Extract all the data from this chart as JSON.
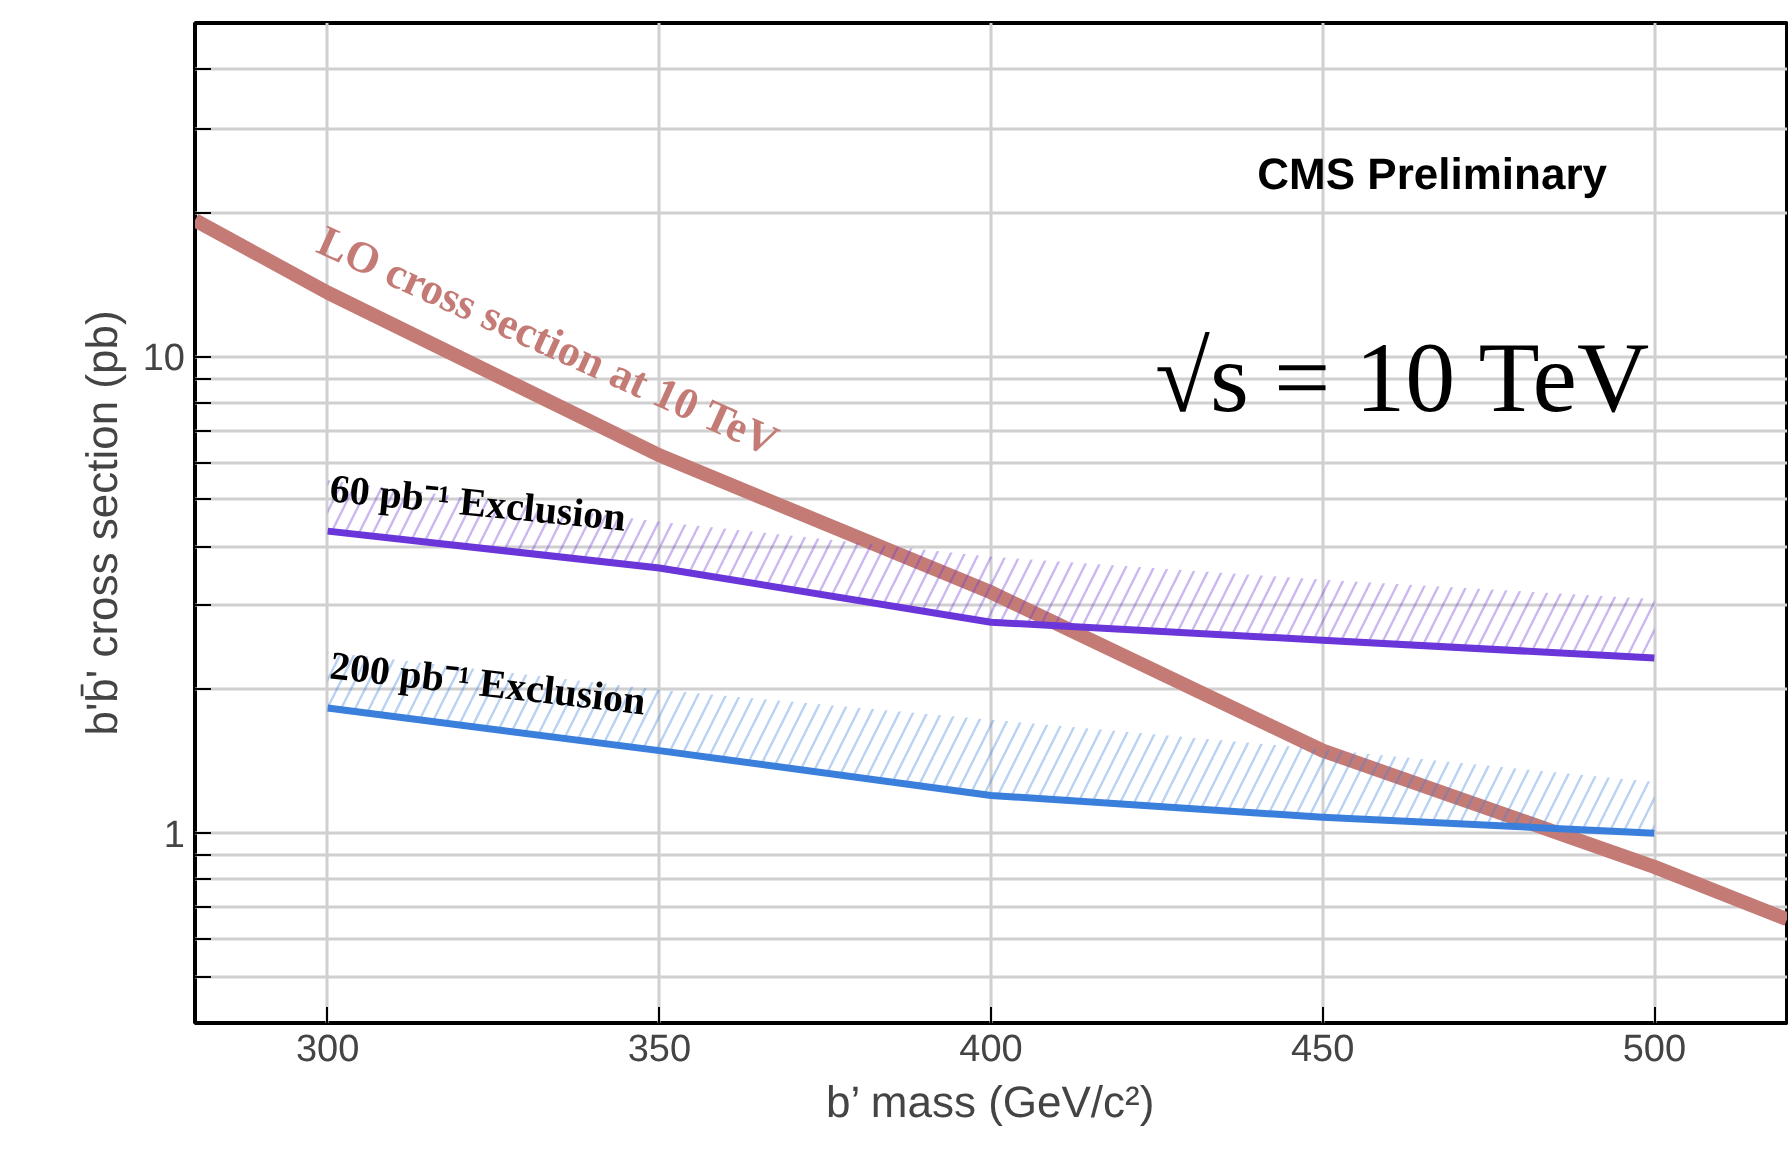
{
  "chart_data": {
    "type": "line",
    "xlabel": "b’ mass (GeV/c²)",
    "ylabel": "b'b̄' cross section (pb)",
    "xlim": [
      280,
      520
    ],
    "ylim": [
      0.4,
      50
    ],
    "log": "y",
    "grid": true,
    "line_style": "solid",
    "marker": "none",
    "xticks": [
      300,
      350,
      400,
      450,
      500
    ],
    "yticks": [
      {
        "value": 0.4,
        "label": null
      },
      {
        "value": 0.5,
        "label": null
      },
      {
        "value": 0.6,
        "label": null
      },
      {
        "value": 0.7,
        "label": null
      },
      {
        "value": 0.8,
        "label": null
      },
      {
        "value": 0.9,
        "label": null
      },
      1,
      {
        "value": 2,
        "label": null
      },
      {
        "value": 3,
        "label": null
      },
      {
        "value": 4,
        "label": null
      },
      {
        "value": 5,
        "label": null
      },
      {
        "value": 6,
        "label": null
      },
      {
        "value": 7,
        "label": null
      },
      {
        "value": 8,
        "label": null
      },
      {
        "value": 9,
        "label": null
      },
      10,
      {
        "value": 20,
        "label": null
      },
      {
        "value": 30,
        "label": null
      },
      {
        "value": 40,
        "label": null
      },
      {
        "value": 50,
        "label": null
      }
    ],
    "series": [
      {
        "name": "LO cross section at 10 TeV",
        "color": "#c47b76",
        "x": [
          280,
          300,
          350,
          400,
          450,
          500,
          520
        ],
        "values": [
          19.3,
          13.6,
          6.2,
          3.2,
          1.49,
          0.85,
          0.66
        ]
      },
      {
        "name": "60 pb⁻¹ Exclusion",
        "color": "#6a35d9",
        "x": [
          300,
          350,
          400,
          450,
          500
        ],
        "values": [
          4.3,
          3.6,
          2.77,
          2.54,
          2.33
        ],
        "lower": [
          4.3,
          3.6,
          2.77,
          2.54,
          2.33
        ],
        "upper": [
          5.5,
          4.5,
          3.8,
          3.4,
          3.1
        ]
      },
      {
        "name": "200 pb⁻¹ Exclusion",
        "color": "#3a7fdc",
        "x": [
          300,
          350,
          400,
          450,
          500
        ],
        "values": [
          1.83,
          1.49,
          1.2,
          1.08,
          1.0
        ],
        "lower": [
          1.83,
          1.49,
          1.2,
          1.08,
          1.0
        ],
        "upper": [
          2.4,
          2.0,
          1.73,
          1.5,
          1.28
        ]
      }
    ],
    "annotations": [
      "CMS Preliminary",
      "√s = 10 TeV"
    ]
  }
}
